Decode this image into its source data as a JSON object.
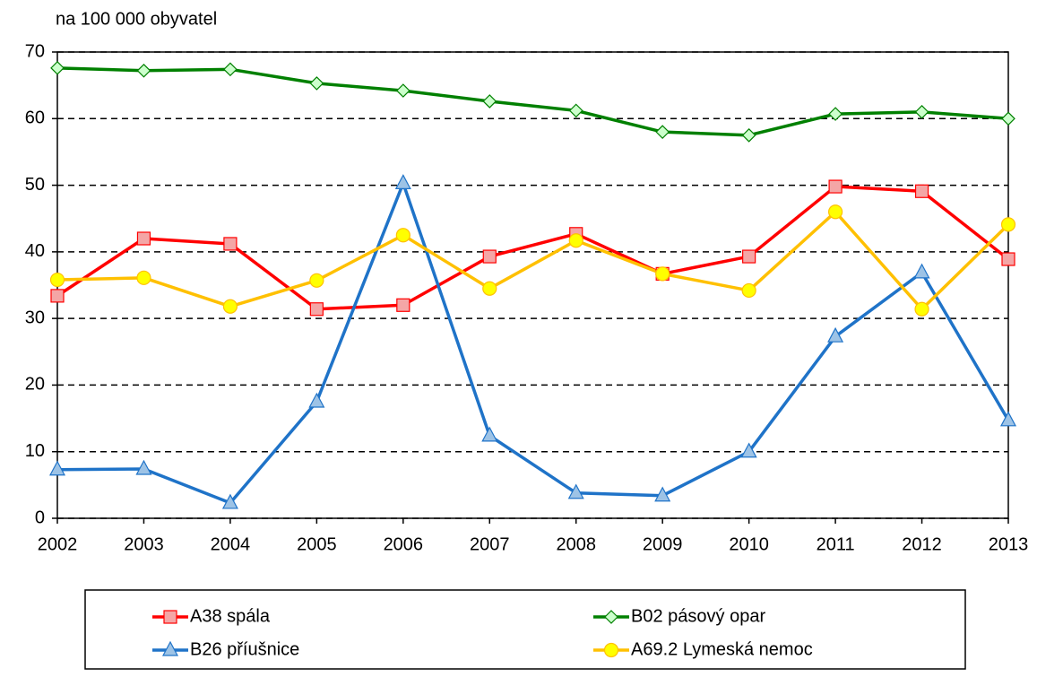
{
  "chart_data": {
    "type": "line",
    "y_label": "na 100 000 obyvatel",
    "categories": [
      "2002",
      "2003",
      "2004",
      "2005",
      "2006",
      "2007",
      "2008",
      "2009",
      "2010",
      "2011",
      "2012",
      "2013"
    ],
    "series": [
      {
        "name": "A38 spála",
        "color": "#ff0000",
        "marker": "square",
        "marker_fill": "#f4a6a6",
        "values": [
          33.4,
          42.0,
          41.2,
          31.4,
          32.0,
          39.3,
          42.7,
          36.7,
          39.3,
          49.8,
          49.1,
          38.9
        ]
      },
      {
        "name": "B02 pásový opar",
        "color": "#008000",
        "marker": "diamond",
        "marker_fill": "#ccffcc",
        "values": [
          67.6,
          67.2,
          67.4,
          65.3,
          64.2,
          62.6,
          61.2,
          58.0,
          57.5,
          60.7,
          61.0,
          60.0
        ]
      },
      {
        "name": "B26 příušnice",
        "color": "#1f73c8",
        "marker": "triangle",
        "marker_fill": "#9dc3e6",
        "values": [
          7.3,
          7.4,
          2.3,
          17.5,
          50.3,
          12.4,
          3.8,
          3.4,
          10.0,
          27.3,
          36.9,
          14.7
        ]
      },
      {
        "name": "A69.2 Lymeská nemoc",
        "color": "#ffc000",
        "marker": "circle",
        "marker_fill": "#ffff00",
        "values": [
          35.8,
          36.1,
          31.8,
          35.7,
          42.5,
          34.5,
          41.7,
          36.7,
          34.2,
          46.0,
          31.4,
          44.1
        ]
      }
    ],
    "ylim": [
      0,
      70
    ],
    "yticks": [
      0,
      10,
      20,
      30,
      40,
      50,
      60,
      70
    ],
    "grid": true
  }
}
